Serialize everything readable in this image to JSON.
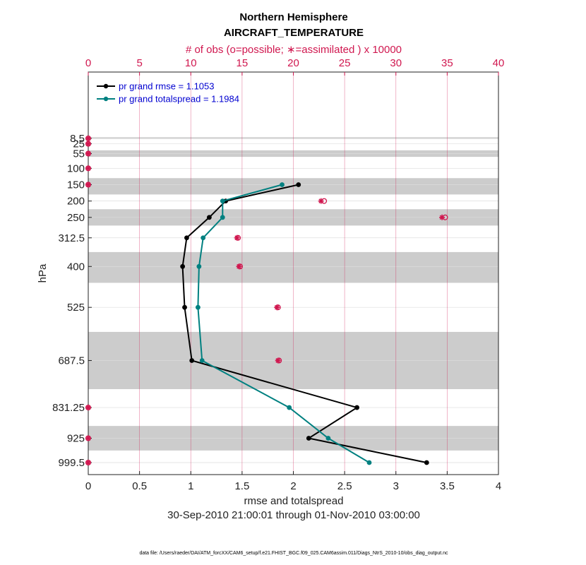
{
  "chart_data": {
    "type": "line",
    "title": "Northern Hemisphere",
    "subtitle": "AIRCRAFT_TEMPERATURE",
    "top_axis_label": "# of obs (o=possible; ∗=assimilated ) x 10000",
    "xlabel": "rmse and totalspread",
    "ylabel": "hPa",
    "date_range": "30-Sep-2010 21:00:01 through 01-Nov-2010 03:00:00",
    "footer": "data file: /Users/raeder/DAI/ATM_forcXX/CAM6_setup/f.e21.FHIST_BGC.f09_025.CAM6assim.011/Diags_NtrS_2010-10/obs_diag_output.nc",
    "xlim": [
      0,
      4
    ],
    "x_ticks": [
      "0",
      "0.5",
      "1",
      "1.5",
      "2",
      "2.5",
      "3",
      "3.5",
      "4"
    ],
    "top_xlim": [
      0,
      40
    ],
    "top_ticks": [
      "0",
      "5",
      "10",
      "15",
      "20",
      "25",
      "30",
      "35",
      "40"
    ],
    "levels": [
      8.5,
      25,
      55,
      100,
      150,
      200,
      250,
      312.5,
      400,
      525,
      687.5,
      831.25,
      925,
      999.5
    ],
    "level_labels": [
      "8.5",
      "25",
      "55",
      "100",
      "150",
      "200",
      "250",
      "312.5",
      "400",
      "525",
      "687.5",
      "831.25",
      "925",
      "999.5"
    ],
    "shaded_bands": [
      [
        5,
        10
      ],
      [
        45,
        65
      ],
      [
        130,
        180
      ],
      [
        225,
        275
      ],
      [
        356,
        450
      ],
      [
        600,
        775
      ],
      [
        887.5,
        962.5
      ]
    ],
    "series": [
      {
        "name": "pr grand rmse",
        "legend": "pr grand rmse = 1.1053",
        "color": "#000000",
        "levels": [
          150,
          200,
          250,
          312.5,
          400,
          525,
          687.5,
          831.25,
          925,
          999.5
        ],
        "values": [
          2.05,
          1.34,
          1.18,
          0.96,
          0.92,
          0.94,
          1.01,
          2.62,
          2.15,
          3.3
        ]
      },
      {
        "name": "pr grand totalspread",
        "legend": "pr grand totalspread = 1.1984",
        "color": "#008080",
        "levels": [
          150,
          200,
          250,
          312.5,
          400,
          525,
          687.5,
          831.25,
          925,
          999.5
        ],
        "values": [
          1.89,
          1.31,
          1.31,
          1.12,
          1.08,
          1.07,
          1.11,
          1.96,
          2.34,
          2.74
        ]
      }
    ],
    "obs_counts": {
      "levels": [
        8.5,
        25,
        55,
        100,
        150,
        200,
        250,
        312.5,
        400,
        525,
        687.5,
        831.25,
        925,
        999.5
      ],
      "possible": [
        0,
        0,
        0,
        0,
        0,
        23.0,
        34.8,
        14.6,
        14.8,
        18.5,
        18.6,
        0,
        0,
        0
      ],
      "assimilated": [
        0,
        0,
        0,
        0,
        0,
        22.7,
        34.5,
        14.5,
        14.7,
        18.4,
        18.5,
        0,
        0,
        0
      ]
    },
    "colors": {
      "obs": "#d0174f",
      "band": "#cccccc",
      "grid": "#dddddd",
      "legend_text": "#0000d0"
    }
  }
}
